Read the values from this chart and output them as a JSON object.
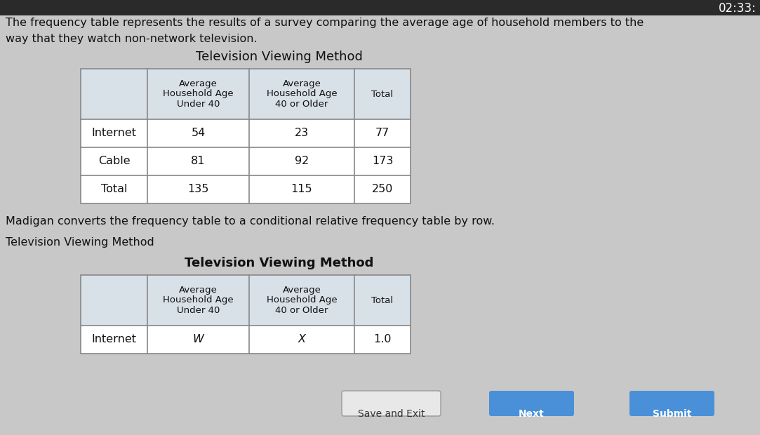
{
  "bg_color": "#c8c8c8",
  "top_bar_color": "#2a2a2a",
  "top_bar_height": 22,
  "timer_text": "02:33:",
  "top_text_line1": "The frequency table represents the results of a survey comparing the average age of household members to the",
  "top_text_line2": "way that they watch non-network television.",
  "table1_title": "Television Viewing Method",
  "table1_col_headers": [
    "Average\nHousehold Age\nUnder 40",
    "Average\nHousehold Age\n40 or Older",
    "Total"
  ],
  "table1_rows": [
    [
      "Internet",
      "54",
      "23",
      "77"
    ],
    [
      "Cable",
      "81",
      "92",
      "173"
    ],
    [
      "Total",
      "135",
      "115",
      "250"
    ]
  ],
  "middle_text": "Madigan converts the frequency table to a conditional relative frequency table by row.",
  "label_text": "Television Viewing Method",
  "table2_title": "Television Viewing Method",
  "table2_col_headers": [
    "Average\nHousehold Age\nUnder 40",
    "Average\nHousehold Age\n40 or Older",
    "Total"
  ],
  "table2_rows": [
    [
      "Internet",
      "W",
      "X",
      "1.0"
    ]
  ],
  "button_save": "Save and Exit",
  "button_next": "Next",
  "button_submit": "Submit",
  "button_next_color": "#4a90d9",
  "button_submit_color": "#4a90d9",
  "button_save_color": "#e8e8e8",
  "header_cell_color": "#d8e0e8",
  "data_cell_color": "#ffffff",
  "table_line_color": "#888888",
  "text_color": "#111111",
  "italic_vals": [
    "W",
    "X"
  ]
}
